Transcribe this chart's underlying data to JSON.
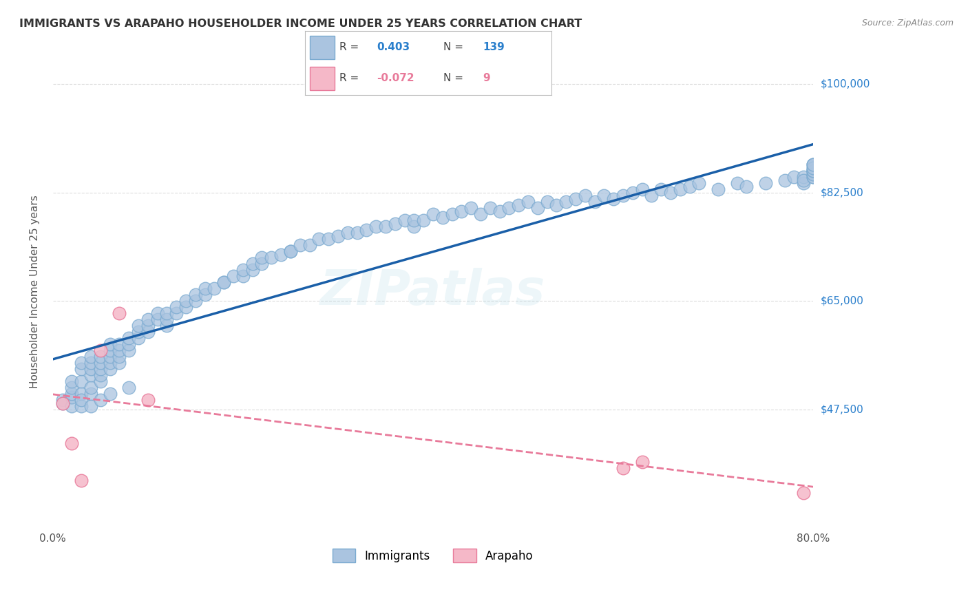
{
  "title": "IMMIGRANTS VS ARAPAHO HOUSEHOLDER INCOME UNDER 25 YEARS CORRELATION CHART",
  "source": "Source: ZipAtlas.com",
  "ylabel": "Householder Income Under 25 years",
  "xlim": [
    0.0,
    0.8
  ],
  "ylim": [
    28000,
    105000
  ],
  "yticks": [
    47500,
    65000,
    82500,
    100000
  ],
  "ytick_labels": [
    "$47,500",
    "$65,000",
    "$82,500",
    "$100,000"
  ],
  "xtick_positions": [
    0.0,
    0.2,
    0.4,
    0.6,
    0.8
  ],
  "xtick_labels": [
    "0.0%",
    "",
    "",
    "",
    "80.0%"
  ],
  "immigrants_R": 0.403,
  "immigrants_N": 139,
  "arapaho_R": -0.072,
  "arapaho_N": 9,
  "background_color": "#ffffff",
  "grid_color": "#cccccc",
  "immigrants_color": "#aac4e0",
  "immigrants_edge": "#7aaad0",
  "immigrants_line_color": "#1a5fa8",
  "arapaho_color": "#f5b8c8",
  "arapaho_edge": "#e87a9a",
  "arapaho_line_color": "#e87a9a",
  "immigrants_x": [
    0.01,
    0.01,
    0.02,
    0.02,
    0.02,
    0.02,
    0.02,
    0.03,
    0.03,
    0.03,
    0.03,
    0.03,
    0.03,
    0.04,
    0.04,
    0.04,
    0.04,
    0.04,
    0.04,
    0.04,
    0.05,
    0.05,
    0.05,
    0.05,
    0.05,
    0.05,
    0.06,
    0.06,
    0.06,
    0.06,
    0.06,
    0.06,
    0.07,
    0.07,
    0.07,
    0.07,
    0.08,
    0.08,
    0.08,
    0.08,
    0.09,
    0.09,
    0.09,
    0.1,
    0.1,
    0.1,
    0.11,
    0.11,
    0.12,
    0.12,
    0.12,
    0.13,
    0.13,
    0.14,
    0.14,
    0.15,
    0.15,
    0.16,
    0.16,
    0.17,
    0.18,
    0.18,
    0.19,
    0.2,
    0.2,
    0.21,
    0.21,
    0.22,
    0.22,
    0.23,
    0.24,
    0.25,
    0.25,
    0.26,
    0.27,
    0.28,
    0.29,
    0.3,
    0.31,
    0.32,
    0.33,
    0.34,
    0.35,
    0.36,
    0.37,
    0.38,
    0.38,
    0.39,
    0.4,
    0.41,
    0.42,
    0.43,
    0.44,
    0.45,
    0.46,
    0.47,
    0.48,
    0.49,
    0.5,
    0.51,
    0.52,
    0.53,
    0.54,
    0.55,
    0.56,
    0.57,
    0.58,
    0.59,
    0.6,
    0.61,
    0.62,
    0.63,
    0.64,
    0.65,
    0.66,
    0.67,
    0.68,
    0.7,
    0.72,
    0.73,
    0.75,
    0.77,
    0.78,
    0.79,
    0.79,
    0.79,
    0.8,
    0.8,
    0.8,
    0.8,
    0.8,
    0.8,
    0.8,
    0.8,
    0.8,
    0.8,
    0.8,
    0.8,
    0.8
  ],
  "immigrants_y": [
    49000,
    48500,
    48000,
    49500,
    50000,
    51000,
    52000,
    50000,
    52000,
    54000,
    55000,
    48000,
    49000,
    50000,
    51000,
    53000,
    54000,
    55000,
    56000,
    48000,
    52000,
    53000,
    54000,
    55000,
    56000,
    49000,
    54000,
    55000,
    56000,
    57000,
    58000,
    50000,
    55000,
    56000,
    57000,
    58000,
    57000,
    58000,
    59000,
    51000,
    59000,
    60000,
    61000,
    60000,
    61000,
    62000,
    62000,
    63000,
    61000,
    62000,
    63000,
    63000,
    64000,
    64000,
    65000,
    65000,
    66000,
    66000,
    67000,
    67000,
    68000,
    68000,
    69000,
    69000,
    70000,
    70000,
    71000,
    71000,
    72000,
    72000,
    72500,
    73000,
    73000,
    74000,
    74000,
    75000,
    75000,
    75500,
    76000,
    76000,
    76500,
    77000,
    77000,
    77500,
    78000,
    77000,
    78000,
    78000,
    79000,
    78500,
    79000,
    79500,
    80000,
    79000,
    80000,
    79500,
    80000,
    80500,
    81000,
    80000,
    81000,
    80500,
    81000,
    81500,
    82000,
    81000,
    82000,
    81500,
    82000,
    82500,
    83000,
    82000,
    83000,
    82500,
    83000,
    83500,
    84000,
    83000,
    84000,
    83500,
    84000,
    84500,
    85000,
    84000,
    85000,
    84500,
    85000,
    85500,
    86000,
    85000,
    86000,
    85500,
    86000,
    86500,
    87000,
    86000,
    87000,
    86500,
    87000
  ],
  "arapaho_x": [
    0.01,
    0.02,
    0.03,
    0.05,
    0.07,
    0.1,
    0.6,
    0.62,
    0.79
  ],
  "arapaho_y": [
    48500,
    42000,
    36000,
    57000,
    63000,
    49000,
    38000,
    39000,
    34000
  ]
}
